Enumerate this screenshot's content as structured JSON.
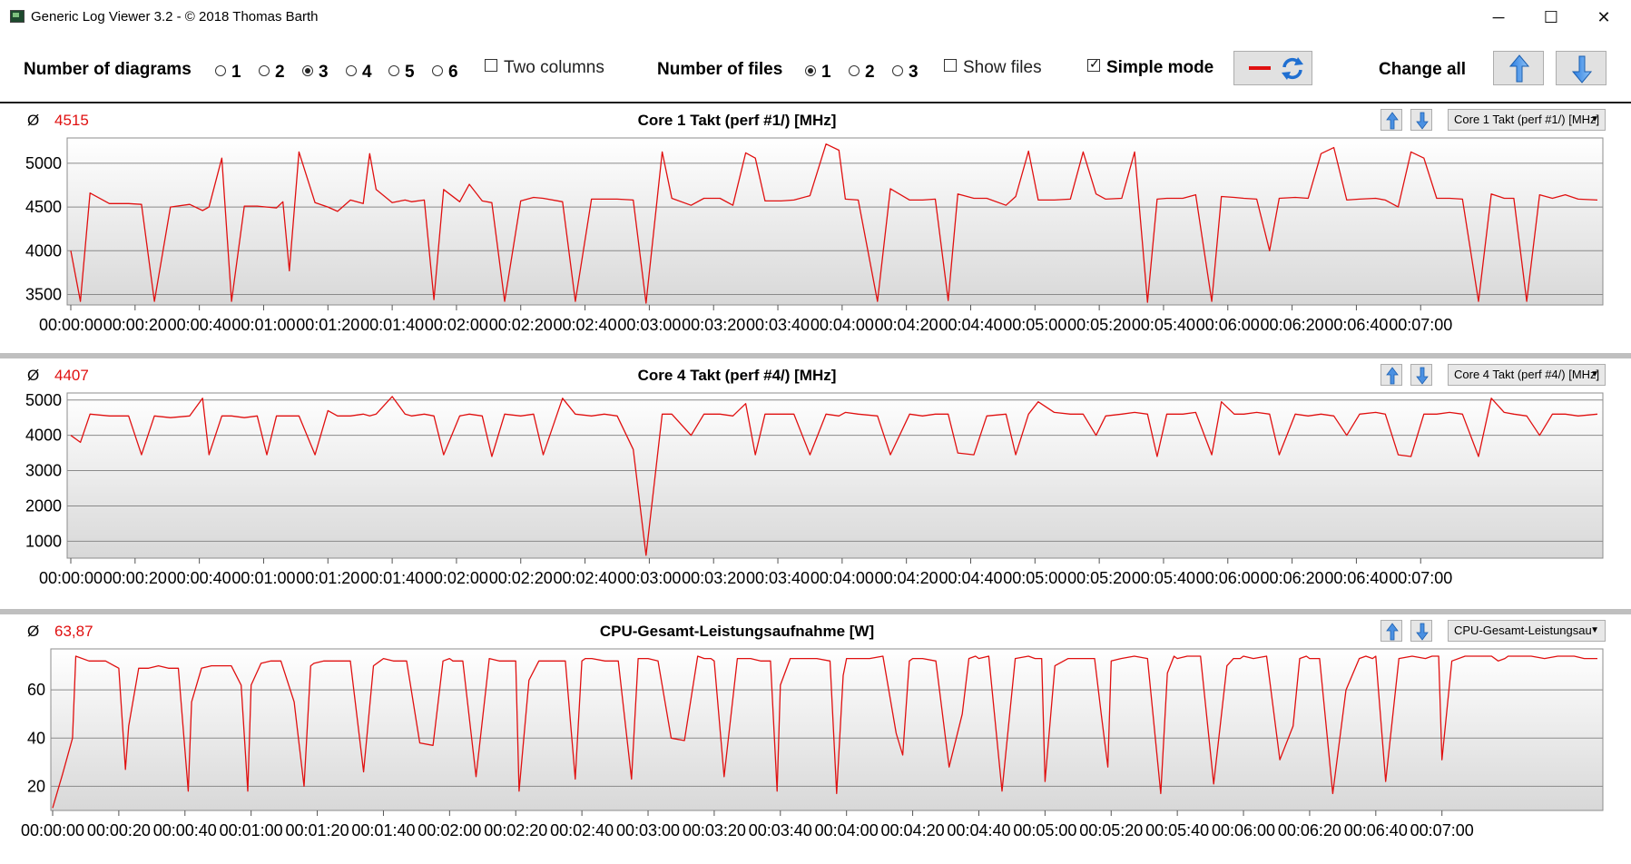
{
  "window": {
    "title": "Generic Log Viewer 3.2 - © 2018 Thomas Barth",
    "minimize": "─",
    "maximize": "☐",
    "close": "✕"
  },
  "toolbar": {
    "num_diagrams_label": "Number of diagrams",
    "diagram_options": [
      "1",
      "2",
      "3",
      "4",
      "5",
      "6"
    ],
    "diagram_selected": "3",
    "two_columns_label": "Two columns",
    "two_columns_checked": false,
    "num_files_label": "Number of files",
    "file_options": [
      "1",
      "2",
      "3"
    ],
    "file_selected": "1",
    "show_files_label": "Show files",
    "show_files_checked": false,
    "simple_mode_label": "Simple mode",
    "simple_mode_checked": true,
    "change_all_label": "Change all",
    "line_color": "#e01010"
  },
  "x_tick_labels": [
    "00:00:00",
    "00:00:20",
    "00:00:40",
    "00:01:00",
    "00:01:20",
    "00:01:40",
    "00:02:00",
    "00:02:20",
    "00:02:40",
    "00:03:00",
    "00:03:20",
    "00:03:40",
    "00:04:00",
    "00:04:20",
    "00:04:40",
    "00:05:00",
    "00:05:20",
    "00:05:40",
    "00:06:00",
    "00:06:20",
    "00:06:40",
    "00:07:00"
  ],
  "chart_data": [
    {
      "type": "line",
      "title": "Core 1 Takt (perf #1/) [MHz]",
      "average_symbol": "Ø",
      "average": "4515",
      "selector": "Core 1 Takt (perf #1/) [MHz]",
      "y_ticks": [
        3500,
        4000,
        4500,
        5000
      ],
      "ylim": [
        3380,
        5290
      ],
      "x_range_seconds": [
        0,
        475
      ],
      "series": [
        {
          "x": [
            0,
            3,
            6,
            12,
            18,
            22,
            26,
            31,
            37,
            41,
            43,
            47,
            50,
            54,
            58,
            61,
            64,
            66,
            68,
            71,
            76,
            80,
            83,
            87,
            91,
            93,
            95,
            100,
            104,
            106,
            110,
            113,
            116,
            121,
            124,
            128,
            131,
            135,
            140,
            144,
            147,
            153,
            157,
            162,
            166,
            170,
            175,
            179,
            184,
            187,
            193,
            197,
            202,
            206,
            210,
            213,
            216,
            221,
            225,
            230,
            235,
            239,
            241,
            245,
            251,
            255,
            261,
            265,
            269,
            273,
            276,
            281,
            285,
            291,
            294,
            298,
            301,
            306,
            311,
            315,
            319,
            322,
            327,
            331,
            335,
            338,
            341,
            346,
            350,
            355,
            358,
            362,
            365,
            369,
            373,
            376,
            381,
            385,
            389,
            393,
            397,
            401,
            406,
            409,
            413,
            417,
            421,
            425,
            429,
            433,
            438,
            442,
            446,
            449,
            453,
            457,
            461,
            465,
            469,
            475
          ],
          "y": [
            4000,
            3420,
            4660,
            4540,
            4540,
            4530,
            3420,
            4500,
            4530,
            4460,
            4500,
            5060,
            3420,
            4510,
            4510,
            4500,
            4490,
            4560,
            3770,
            5130,
            4550,
            4500,
            4450,
            4580,
            4540,
            5110,
            4700,
            4550,
            4580,
            4560,
            4580,
            3440,
            4700,
            4560,
            4760,
            4570,
            4550,
            3420,
            4570,
            4610,
            4600,
            4560,
            3420,
            4590,
            4590,
            4590,
            4580,
            3400,
            5130,
            4600,
            4520,
            4600,
            4600,
            4520,
            5120,
            5060,
            4570,
            4570,
            4580,
            4630,
            5220,
            5150,
            4590,
            4580,
            3420,
            4710,
            4580,
            4580,
            4590,
            3430,
            4650,
            4600,
            4600,
            4520,
            4620,
            5140,
            4580,
            4580,
            4590,
            5130,
            4650,
            4590,
            4600,
            5130,
            3410,
            4590,
            4600,
            4600,
            4640,
            3420,
            4620,
            4610,
            4600,
            4590,
            4000,
            4600,
            4610,
            4600,
            5110,
            5180,
            4580,
            4590,
            4600,
            4580,
            4500,
            5130,
            5060,
            4600,
            4600,
            4590,
            3420,
            4650,
            4600,
            4600,
            3420,
            4640,
            4600,
            4640,
            4590,
            4580
          ]
        }
      ]
    },
    {
      "type": "line",
      "title": "Core 4 Takt (perf #4/) [MHz]",
      "average_symbol": "Ø",
      "average": "4407",
      "selector": "Core 4 Takt (perf #4/) [MHz]",
      "y_ticks": [
        1000,
        2000,
        3000,
        4000,
        5000
      ],
      "ylim": [
        520,
        5200
      ],
      "x_range_seconds": [
        0,
        475
      ],
      "series": [
        {
          "x": [
            0,
            3,
            6,
            12,
            18,
            22,
            26,
            31,
            37,
            41,
            43,
            47,
            50,
            54,
            58,
            61,
            64,
            66,
            68,
            71,
            76,
            80,
            83,
            87,
            91,
            93,
            95,
            100,
            104,
            106,
            110,
            113,
            116,
            121,
            124,
            128,
            131,
            135,
            140,
            144,
            147,
            153,
            157,
            162,
            166,
            170,
            175,
            179,
            184,
            187,
            193,
            197,
            202,
            206,
            210,
            213,
            216,
            221,
            225,
            230,
            235,
            239,
            241,
            245,
            251,
            255,
            261,
            265,
            269,
            273,
            276,
            281,
            285,
            291,
            294,
            298,
            301,
            306,
            311,
            315,
            319,
            322,
            327,
            331,
            335,
            338,
            341,
            346,
            350,
            355,
            358,
            362,
            365,
            369,
            373,
            376,
            381,
            385,
            389,
            393,
            397,
            401,
            406,
            409,
            413,
            417,
            421,
            425,
            429,
            433,
            438,
            442,
            446,
            449,
            453,
            457,
            461,
            465,
            469,
            475
          ],
          "y": [
            4000,
            3800,
            4600,
            4550,
            4550,
            3450,
            4550,
            4500,
            4550,
            5050,
            3450,
            4550,
            4550,
            4500,
            4550,
            3450,
            4550,
            4550,
            4550,
            4550,
            3450,
            4700,
            4550,
            4550,
            4600,
            4550,
            4600,
            5100,
            4600,
            4550,
            4600,
            4550,
            3450,
            4550,
            4600,
            4550,
            3400,
            4600,
            4550,
            4600,
            3450,
            5050,
            4600,
            4550,
            4600,
            4550,
            3600,
            600,
            4600,
            4600,
            4000,
            4600,
            4600,
            4550,
            4900,
            3450,
            4600,
            4600,
            4600,
            3450,
            4600,
            4550,
            4650,
            4600,
            4550,
            3450,
            4600,
            4550,
            4600,
            4600,
            3500,
            3450,
            4550,
            4600,
            3450,
            4600,
            4950,
            4650,
            4600,
            4600,
            4000,
            4550,
            4600,
            4650,
            4600,
            3400,
            4600,
            4600,
            4650,
            3450,
            4950,
            4600,
            4600,
            4650,
            4600,
            3450,
            4600,
            4550,
            4600,
            4550,
            4000,
            4600,
            4650,
            4600,
            3450,
            3400,
            4600,
            4600,
            4650,
            4600,
            3400,
            5050,
            4650,
            4600,
            4550,
            4000,
            4600,
            4600,
            4550,
            4600
          ]
        }
      ]
    },
    {
      "type": "line",
      "title": "CPU-Gesamt-Leistungsaufnahme [W]",
      "average_symbol": "Ø",
      "average": "63,87",
      "selector": "CPU-Gesamt-Leistungsau",
      "y_ticks": [
        20,
        40,
        60
      ],
      "ylim": [
        10,
        77
      ],
      "x_range_seconds": [
        0,
        467
      ],
      "series": [
        {
          "x": [
            0,
            3,
            6,
            7,
            11,
            16,
            20,
            22,
            23,
            26,
            29,
            32,
            35,
            38,
            41,
            42,
            45,
            48,
            51,
            54,
            57,
            59,
            60,
            63,
            66,
            69,
            73,
            76,
            78,
            79,
            82,
            86,
            90,
            94,
            97,
            99,
            100,
            103,
            107,
            111,
            115,
            118,
            120,
            121,
            124,
            128,
            132,
            135,
            138,
            140,
            141,
            144,
            147,
            151,
            155,
            158,
            160,
            161,
            163,
            167,
            171,
            175,
            177,
            179,
            180,
            183,
            187,
            191,
            195,
            197,
            199,
            200,
            203,
            207,
            211,
            214,
            217,
            219,
            220,
            223,
            227,
            231,
            235,
            237,
            239,
            240,
            243,
            247,
            251,
            255,
            257,
            259,
            260,
            263,
            267,
            271,
            275,
            277,
            279,
            280,
            283,
            287,
            291,
            295,
            297,
            299,
            300,
            303,
            307,
            311,
            315,
            317,
            319,
            320,
            323,
            327,
            331,
            335,
            337,
            339,
            340,
            343,
            347,
            351,
            355,
            357,
            359,
            360,
            363,
            367,
            371,
            375,
            377,
            379,
            380,
            383,
            387,
            391,
            395,
            397,
            399,
            400,
            403,
            407,
            411,
            415,
            417,
            419,
            420,
            423,
            427,
            431,
            435,
            437,
            439,
            440,
            443,
            447,
            451,
            455,
            457,
            459,
            460,
            463,
            467
          ],
          "y": [
            11,
            25,
            40,
            74,
            72,
            72,
            69,
            27,
            45,
            69,
            69,
            70,
            69,
            69,
            18,
            55,
            69,
            70,
            70,
            70,
            62,
            18,
            62,
            71,
            72,
            72,
            55,
            20,
            70,
            71,
            72,
            72,
            72,
            26,
            70,
            72,
            73,
            72,
            72,
            38,
            37,
            72,
            73,
            72,
            72,
            24,
            73,
            72,
            72,
            72,
            18,
            64,
            72,
            72,
            72,
            23,
            72,
            73,
            73,
            72,
            72,
            23,
            73,
            73,
            73,
            72,
            40,
            39,
            74,
            73,
            73,
            72,
            24,
            73,
            73,
            72,
            72,
            18,
            62,
            73,
            73,
            73,
            72,
            17,
            66,
            73,
            73,
            73,
            74,
            42,
            33,
            72,
            73,
            73,
            72,
            28,
            50,
            73,
            74,
            73,
            74,
            18,
            73,
            74,
            73,
            73,
            22,
            70,
            73,
            73,
            73,
            50,
            28,
            72,
            73,
            74,
            73,
            17,
            67,
            74,
            73,
            74,
            74,
            21,
            70,
            73,
            73,
            74,
            73,
            74,
            31,
            45,
            73,
            74,
            73,
            73,
            17,
            60,
            73,
            74,
            73,
            74,
            22,
            73,
            74,
            73,
            74,
            74,
            31,
            72,
            74,
            74,
            74,
            72,
            73,
            74,
            74,
            74,
            73,
            74,
            74,
            74,
            74,
            73,
            73
          ]
        }
      ]
    }
  ]
}
